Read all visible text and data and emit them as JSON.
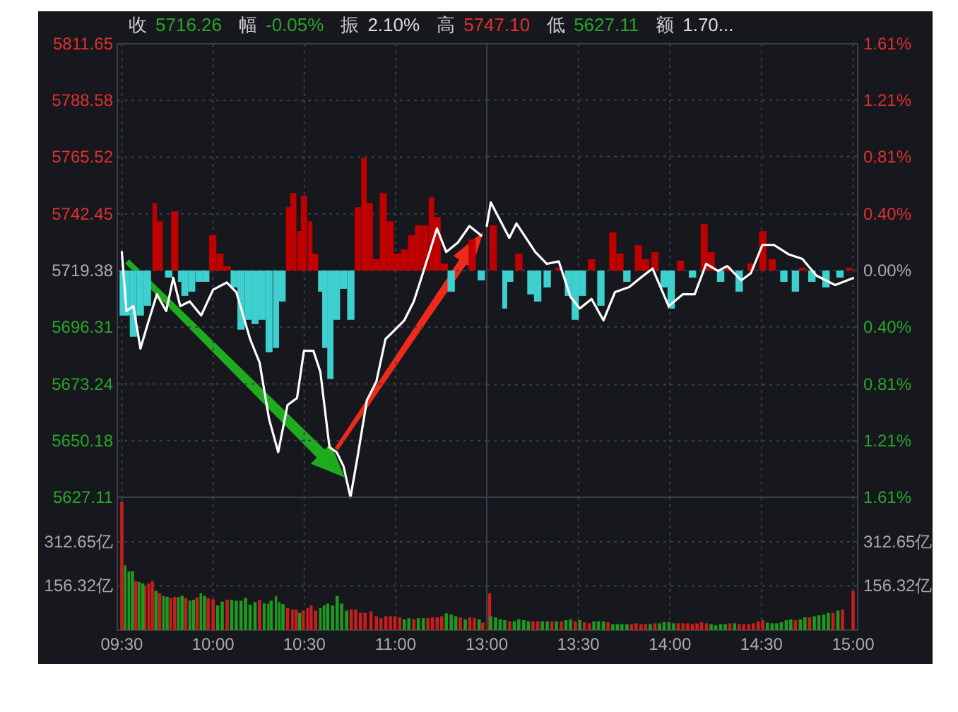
{
  "chart_data": [
    {
      "type": "line",
      "annotations": [
        "收",
        "5716.26",
        "幅",
        "-0.05%",
        "振",
        "2.10%",
        "高",
        "5747.10",
        "低",
        "5627.11",
        "额",
        "1.70..."
      ],
      "xlim": [
        9.475,
        11.5
      ],
      "xticks": [
        {
          "value": 9.5,
          "label": null
        },
        {
          "value": 10,
          "label": null
        },
        {
          "value": 10.5,
          "label": null
        },
        {
          "value": 11,
          "label": null
        }
      ],
      "ylim": [
        5627.11,
        5811.65
      ],
      "yticks": [
        5627.11,
        5650.18,
        5673.24,
        5696.31,
        5719.38,
        5742.45,
        5765.52,
        5788.58,
        5811.65
      ],
      "y2lim": [
        -1.61,
        1.61
      ],
      "grid": true,
      "tick_labels": "y",
      "series": [
        {
          "type": "bar",
          "axis": "y2",
          "color": "#c00000",
          "x": [
            9.68,
            9.705,
            9.79,
            9.998,
            10.038,
            10.077,
            10.413,
            10.44,
            10.473,
            10.498,
            10.532,
            10.557,
            10.793,
            10.827,
            10.857,
            10.895,
            10.933,
            10.972,
            11.01,
            11.048,
            11.087,
            11.125,
            11.163,
            11.197,
            11.228,
            11.267,
            11.42
          ],
          "values": [
            0.48,
            0.35,
            0.42,
            0.25,
            0.12,
            0.03,
            0.45,
            0.55,
            0.28,
            0.53,
            0.35,
            0.12,
            0.45,
            0.8,
            0.48,
            0.08,
            0.55,
            0.35,
            0.12,
            0.15,
            0.25,
            0.32,
            0.32,
            0.52,
            0.38,
            0.05,
            0.22
          ]
        },
        {
          "type": "bar",
          "axis": "y2",
          "color": "#3ecfcf",
          "x": [
            9.5,
            9.525,
            9.563,
            9.602,
            9.64,
            9.757,
            9.82,
            9.845,
            9.883,
            9.922,
            9.96,
            10.115,
            10.153,
            10.192,
            10.23,
            10.268,
            10.307,
            10.345,
            10.378,
            10.588,
            10.613,
            10.643,
            10.677,
            10.715,
            10.755,
            11.305,
            11.47
          ],
          "values": [
            -0.32,
            -0.32,
            -0.47,
            -0.32,
            -0.25,
            -0.05,
            -0.08,
            -0.18,
            -0.15,
            -0.08,
            -0.08,
            -0.12,
            -0.42,
            -0.35,
            -0.38,
            -0.35,
            -0.58,
            -0.55,
            -0.22,
            -0.15,
            -0.55,
            -0.77,
            -0.35,
            -0.13,
            -0.35,
            -0.15,
            -0.07
          ]
        },
        {
          "type": "line",
          "color": "#ffffff",
          "x": [
            9.5,
            9.525,
            9.563,
            9.602,
            9.64,
            9.692,
            9.743,
            9.782,
            9.82,
            9.872,
            9.935,
            10,
            10.075,
            10.127,
            10.203,
            10.255,
            10.307,
            10.357,
            10.408,
            10.46,
            10.498,
            10.55,
            10.588,
            10.638,
            10.677,
            10.715,
            10.753,
            10.792,
            10.843,
            10.895,
            10.945,
            10.997,
            11.048,
            11.1,
            11.15,
            11.227,
            11.278,
            11.342,
            11.405,
            11.47
          ],
          "values": [
            5726.9,
            5702.9,
            5704.9,
            5687.6,
            5697.2,
            5709.7,
            5702.9,
            5716.4,
            5704.9,
            5706.8,
            5701.1,
            5711.6,
            5714.5,
            5710.6,
            5691.5,
            5681.9,
            5658.9,
            5645.5,
            5664.6,
            5667.5,
            5686.7,
            5686.7,
            5678.1,
            5647.4,
            5645.5,
            5639.7,
            5627.11,
            5643.6,
            5666.6,
            5674.2,
            5691.5,
            5695.3,
            5699.1,
            5706.8,
            5718.3,
            5736.5,
            5726.9,
            5730.8,
            5737.5,
            5733.6
          ]
        }
      ]
    },
    {
      "type": "line",
      "xlim": [
        13,
        15.025
      ],
      "xticks": [
        {
          "value": 13,
          "label": null
        },
        {
          "value": 13.5,
          "label": null
        },
        {
          "value": 14,
          "label": null
        },
        {
          "value": 14.5,
          "label": null
        },
        {
          "value": 15,
          "label": null
        }
      ],
      "ylim": [
        5627.11,
        5811.65
      ],
      "y2lim": [
        -1.61,
        1.61
      ],
      "y2ticks": [
        {
          "value": -1.61,
          "label": "1.61%"
        },
        {
          "value": -1.21,
          "label": "1.21%"
        },
        {
          "value": -0.81,
          "label": "0.81%"
        },
        {
          "value": -0.4,
          "label": "0.40%"
        },
        {
          "value": 0,
          "label": "0.00%"
        },
        {
          "value": 0.4,
          "label": "0.40%"
        },
        {
          "value": 0.81,
          "label": "0.81%"
        },
        {
          "value": 1.21,
          "label": "1.21%"
        },
        {
          "value": 1.61,
          "label": "1.61%"
        }
      ],
      "grid": true,
      "tick_labels": "y",
      "series": [
        {
          "type": "bar",
          "axis": "y2",
          "color": "#c00000",
          "x": [
            13.035,
            13.175,
            13.393,
            13.572,
            13.688,
            13.727,
            13.828,
            13.867,
            13.918,
            14.058,
            14.187,
            14.225,
            14.315,
            14.442,
            14.507,
            14.558,
            14.723,
            14.98
          ],
          "values": [
            0.32,
            0.12,
            0.02,
            0.08,
            0.27,
            0.12,
            0.18,
            0.08,
            0.13,
            0.07,
            0.33,
            0.13,
            0.03,
            0.05,
            0.28,
            0.08,
            0.02,
            0.02
          ]
        },
        {
          "type": "bar",
          "axis": "y2",
          "color": "#3ecfcf",
          "x": [
            13.098,
            13.125,
            13.24,
            13.278,
            13.33,
            13.445,
            13.483,
            13.522,
            13.623,
            13.765,
            13.968,
            14.007,
            14.123,
            14.277,
            14.378,
            14.622,
            14.685,
            14.775,
            14.852,
            14.928
          ],
          "values": [
            -0.27,
            -0.08,
            -0.17,
            -0.22,
            -0.12,
            -0.18,
            -0.35,
            -0.18,
            -0.25,
            -0.08,
            -0.12,
            -0.27,
            -0.05,
            -0.08,
            -0.15,
            -0.08,
            -0.15,
            -0.08,
            -0.12,
            -0.05
          ]
        },
        {
          "type": "line",
          "color": "#ffffff",
          "x": [
            13,
            13.022,
            13.123,
            13.162,
            13.265,
            13.328,
            13.393,
            13.457,
            13.508,
            13.572,
            13.637,
            13.7,
            13.777,
            13.84,
            13.905,
            13.993,
            14.07,
            14.135,
            14.198,
            14.263,
            14.313,
            14.39,
            14.442,
            14.505,
            14.568,
            14.647,
            14.723,
            14.8,
            14.902,
            15
          ],
          "values": [
            5737.5,
            5747.1,
            5732.7,
            5738.5,
            5726.9,
            5722.1,
            5723.1,
            5708.7,
            5703.9,
            5707.8,
            5699.1,
            5710.6,
            5712.6,
            5716.4,
            5720.2,
            5704.9,
            5709.7,
            5709.7,
            5722.1,
            5719.2,
            5721.2,
            5715.4,
            5718.3,
            5729.8,
            5729.8,
            5726.0,
            5724.1,
            5717.3,
            5713.5,
            5716.3
          ]
        }
      ]
    },
    {
      "type": "bar",
      "xlim": [
        9.475,
        11.5
      ],
      "xticks": [
        {
          "value": 9.5,
          "label": "09:30"
        },
        {
          "value": 10,
          "label": "10:00"
        },
        {
          "value": 10.5,
          "label": "10:30"
        },
        {
          "value": 11,
          "label": "11:00"
        }
      ],
      "ylim": [
        0,
        470
      ],
      "yticks": [
        {
          "value": 156.32,
          "label": "156.32亿"
        },
        {
          "value": 312.65,
          "label": "312.65亿"
        }
      ],
      "grid": true,
      "series": [
        {
          "color": "#c81e1e",
          "x": [
            9.5,
            9.577,
            9.628,
            9.647,
            9.667,
            9.707,
            9.768,
            9.79,
            9.85,
            9.912,
            9.973,
            10,
            10.077,
            10.255,
            10.408,
            10.435,
            10.455,
            10.495,
            10.517,
            10.537,
            10.562,
            10.757,
            10.782,
            10.808,
            10.833,
            10.865,
            10.895,
            10.92,
            10.947,
            10.972,
            10.997,
            11.023,
            11.1,
            11.177,
            11.202,
            11.228,
            11.253,
            11.355,
            11.407,
            11.432,
            11.478
          ],
          "values": [
            455,
            173,
            156,
            165,
            173,
            130,
            113,
            118,
            113,
            116,
            113,
            109,
            107,
            107,
            78,
            73,
            73,
            69,
            78,
            87,
            69,
            73,
            73,
            61,
            61,
            66,
            49,
            42,
            49,
            49,
            49,
            45,
            38,
            42,
            45,
            45,
            49,
            45,
            45,
            42,
            26
          ]
        },
        {
          "color": "#1e9a1e",
          "x": [
            9.518,
            9.538,
            9.558,
            9.595,
            9.615,
            9.687,
            9.728,
            9.748,
            9.81,
            9.83,
            9.872,
            9.892,
            9.933,
            9.953,
            10.025,
            10.05,
            10.102,
            10.127,
            10.153,
            10.178,
            10.203,
            10.23,
            10.28,
            10.302,
            10.318,
            10.345,
            10.363,
            10.383,
            10.475,
            10.588,
            10.608,
            10.628,
            10.655,
            10.68,
            10.705,
            10.732,
            11.048,
            11.073,
            11.125,
            11.152,
            11.278,
            11.305,
            11.33,
            11.382,
            11.458
          ],
          "values": [
            229,
            208,
            208,
            170,
            165,
            139,
            121,
            118,
            116,
            121,
            104,
            107,
            130,
            121,
            87,
            101,
            107,
            104,
            104,
            114,
            90,
            99,
            95,
            94,
            104,
            121,
            99,
            92,
            61,
            78,
            87,
            94,
            87,
            121,
            94,
            69,
            38,
            42,
            42,
            42,
            59,
            55,
            49,
            38,
            38
          ]
        }
      ]
    },
    {
      "type": "bar",
      "xlim": [
        13,
        15.025
      ],
      "xticks": [
        {
          "value": 13,
          "label": "13:00"
        },
        {
          "value": 13.5,
          "label": "13:30"
        },
        {
          "value": 14,
          "label": "14:00"
        },
        {
          "value": 14.5,
          "label": "14:30"
        },
        {
          "value": 15,
          "label": "15:00"
        }
      ],
      "y2lim": [
        0,
        470
      ],
      "y2ticks": [
        {
          "value": 156.32,
          "label": "156.32亿"
        },
        {
          "value": 312.65,
          "label": "312.65亿"
        }
      ],
      "grid": true,
      "series": [
        {
          "axis": "y2",
          "color": "#c81e1e",
          "x": [
            13.015,
            13.125,
            13.252,
            13.278,
            13.355,
            13.407,
            13.483,
            13.533,
            13.56,
            13.662,
            13.79,
            13.815,
            13.842,
            13.867,
            13.918,
            14.045,
            14.072,
            14.097,
            14.123,
            14.148,
            14.173,
            14.2,
            14.327,
            14.378,
            14.403,
            14.43,
            14.455,
            14.482,
            14.507,
            14.685,
            14.762,
            14.89,
            14.942,
            15
          ],
          "values": [
            130,
            31,
            31,
            31,
            31,
            31,
            31,
            28,
            24,
            28,
            21,
            24,
            21,
            21,
            24,
            24,
            24,
            24,
            21,
            24,
            28,
            24,
            24,
            21,
            21,
            21,
            24,
            31,
            35,
            35,
            45,
            61,
            73,
            139
          ]
        },
        {
          "axis": "y2",
          "color": "#1e9a1e",
          "x": [
            13.022,
            13.048,
            13.073,
            13.098,
            13.15,
            13.175,
            13.202,
            13.227,
            13.303,
            13.33,
            13.38,
            13.432,
            13.457,
            13.508,
            13.585,
            13.61,
            13.637,
            13.688,
            13.713,
            13.738,
            13.765,
            13.892,
            13.943,
            13.968,
            13.995,
            14.02,
            14.225,
            14.25,
            14.277,
            14.302,
            14.353,
            14.532,
            14.558,
            14.583,
            14.608,
            14.635,
            14.66,
            14.712,
            14.737,
            14.788,
            14.813,
            14.84,
            14.865,
            14.917
          ],
          "values": [
            49,
            45,
            38,
            35,
            31,
            38,
            35,
            31,
            31,
            31,
            31,
            35,
            38,
            35,
            31,
            31,
            31,
            21,
            21,
            21,
            21,
            21,
            24,
            28,
            28,
            24,
            21,
            17,
            21,
            21,
            24,
            26,
            24,
            24,
            28,
            35,
            38,
            38,
            45,
            49,
            52,
            55,
            61,
            69
          ]
        }
      ]
    }
  ]
}
